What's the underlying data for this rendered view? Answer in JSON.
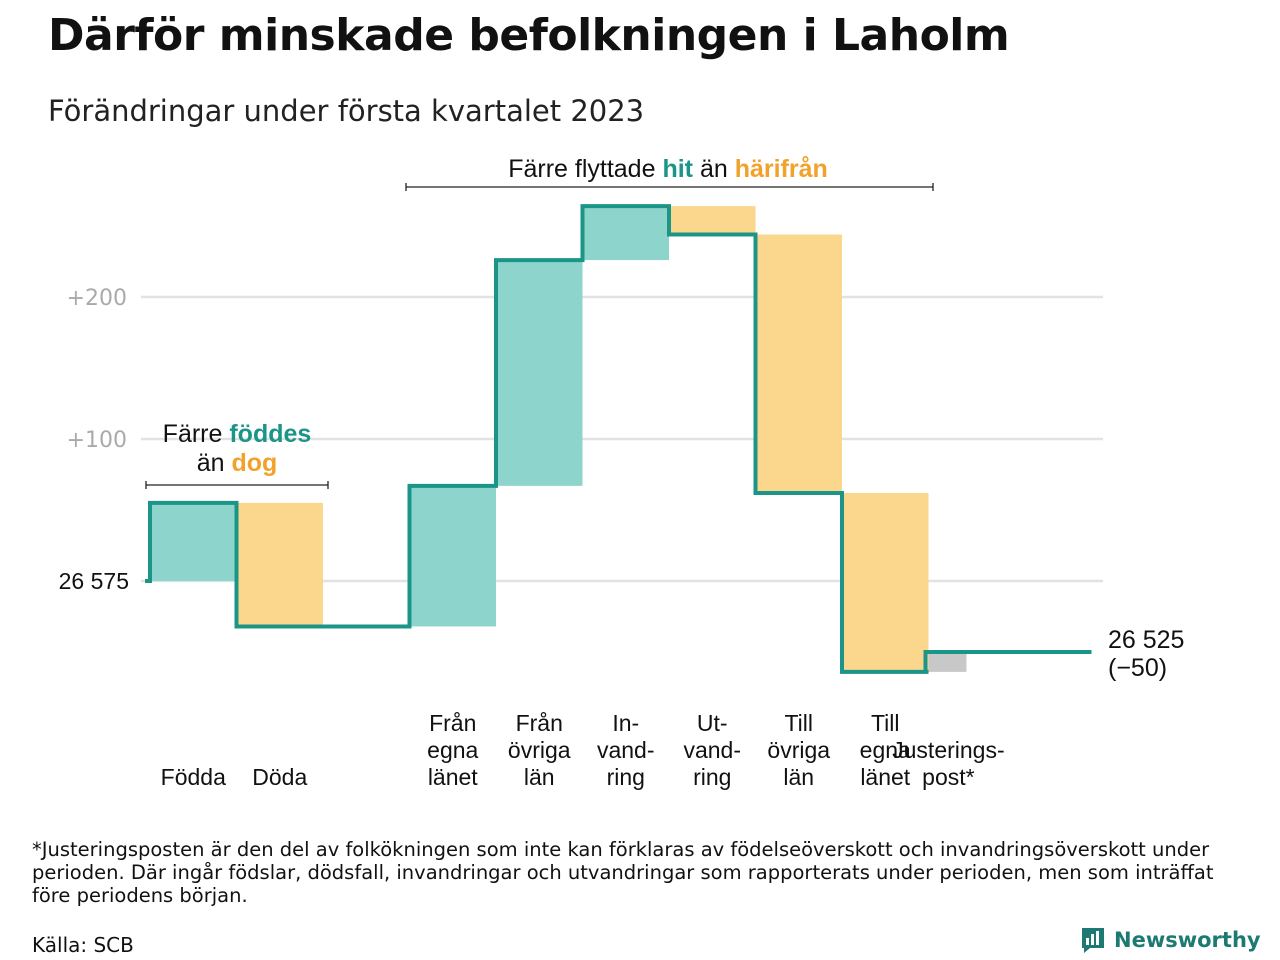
{
  "title": "Därför minskade befolkningen i Laholm",
  "subtitle": "Förändringar under första kvartalet 2023",
  "footnote": "*Justeringsposten är den del av folkökningen som inte kan förklaras av födelseöverskott och invandringsöverskott under perioden. Där ingår födslar, dödsfall, invandringar och utvandringar som rapporterats under perioden, men som inträffat före periodens början.",
  "source": "Källa: SCB",
  "brand": "Newsworthy",
  "colors": {
    "increase": "#8dd5cc",
    "decrease": "#fbd68d",
    "adjustment": "#c8c8c8",
    "line": "#1a9588",
    "accent_teal": "#1a9588",
    "accent_orange": "#f2a22a",
    "grid": "#e2e2e2",
    "tick": "#aaaaaa"
  },
  "annotations": {
    "births": {
      "prefix": "Färre",
      "highlight1": "föddes",
      "middle": "än",
      "highlight2": "dog"
    },
    "moves": {
      "prefix": "Färre flyttade",
      "highlight1": "hit",
      "middle": "än",
      "highlight2": "härifrån"
    }
  },
  "chart_data": {
    "type": "waterfall",
    "start": {
      "value": 26575,
      "label": "26 575"
    },
    "end": {
      "value": 26525,
      "label": "26 525",
      "change_label": "(−50)"
    },
    "y_ticks": [
      {
        "value": 100,
        "label": "+100"
      },
      {
        "value": 200,
        "label": "+200"
      }
    ],
    "grid": true,
    "steps": [
      {
        "label": [
          "Födda"
        ],
        "delta": 55,
        "kind": "increase"
      },
      {
        "label": [
          "Döda"
        ],
        "delta": -87,
        "kind": "decrease"
      },
      {
        "label": [
          ""
        ],
        "delta": 0,
        "kind": "gap"
      },
      {
        "label": [
          "Från",
          "egna",
          "länet"
        ],
        "delta": 99,
        "kind": "increase"
      },
      {
        "label": [
          "Från",
          "övriga",
          "län"
        ],
        "delta": 159,
        "kind": "increase"
      },
      {
        "label": [
          "In-",
          "vand-",
          "ring"
        ],
        "delta": 38,
        "kind": "increase"
      },
      {
        "label": [
          "Ut-",
          "vand-",
          "ring"
        ],
        "delta": -20,
        "kind": "decrease"
      },
      {
        "label": [
          "Till",
          "övriga",
          "län"
        ],
        "delta": -182,
        "kind": "decrease"
      },
      {
        "label": [
          "Till",
          "egna",
          "länet"
        ],
        "delta": -126,
        "kind": "decrease"
      },
      {
        "label": [
          "Justerings-",
          "post*"
        ],
        "delta": 14,
        "kind": "adjustment",
        "span": 2
      }
    ]
  }
}
